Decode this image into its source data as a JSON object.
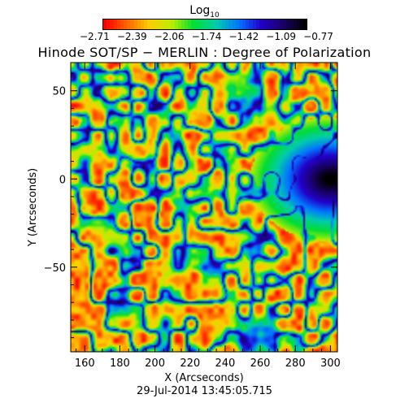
{
  "colorbar": {
    "title": "Log",
    "title_sub": "10",
    "ticks": [
      "-2.71",
      "-2.39",
      "-2.06",
      "-1.74",
      "-1.42",
      "-1.09",
      "-0.77"
    ],
    "colors": [
      "#ff0000",
      "#ff6600",
      "#ffcc00",
      "#bbee00",
      "#00dd33",
      "#00ccaa",
      "#0077ff",
      "#2200cc",
      "#1a0066",
      "#000000"
    ]
  },
  "chart_data": {
    "type": "heatmap",
    "title": "Hinode SOT/SP − MERLIN : Degree of Polarization",
    "xlabel": "X (Arcseconds)",
    "ylabel": "Y (Arcseconds)",
    "xlim": [
      152,
      304
    ],
    "ylim": [
      -98,
      66
    ],
    "xticks": [
      160,
      180,
      200,
      220,
      240,
      260,
      280,
      300
    ],
    "yticks": [
      50,
      0,
      -50
    ],
    "value_range": [
      -2.71,
      -0.77
    ],
    "value_scale": "log10",
    "colormap_colors": [
      "#ff0000",
      "#ff6600",
      "#ffcc00",
      "#bbee00",
      "#00dd33",
      "#00ccaa",
      "#0077ff",
      "#2200cc",
      "#1a0066",
      "#000000"
    ]
  },
  "footer": {
    "timestamp": "29-Jul-2014 13:45:05.715"
  }
}
